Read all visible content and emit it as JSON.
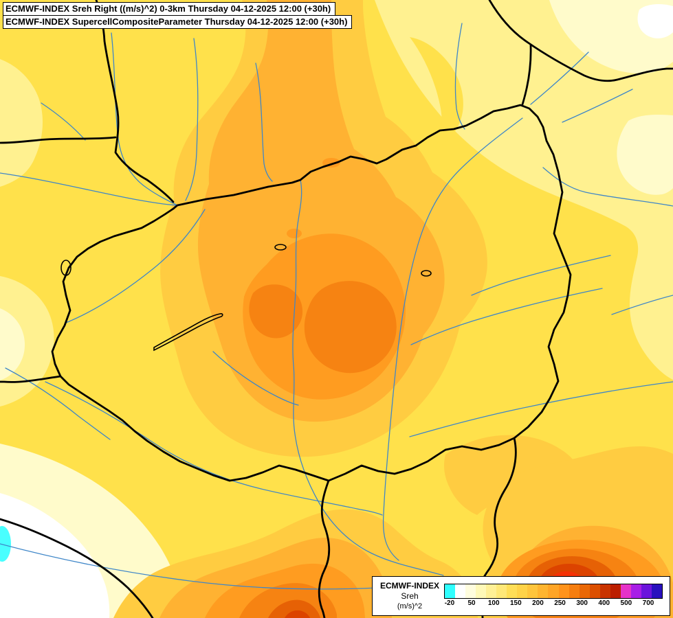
{
  "header": {
    "line1": "ECMWF-INDEX Sreh Right ((m/s)^2) 0-3km Thursday 04-12-2025 12:00 (+30h)",
    "line2": "ECMWF-INDEX SupercellCompositeParameter Thursday 04-12-2025 12:00 (+30h)"
  },
  "legend": {
    "title": "ECMWF-INDEX",
    "parameter": "Sreh",
    "units": "(m/s)^2",
    "ticks": [
      "-20",
      "50",
      "100",
      "150",
      "200",
      "250",
      "300",
      "400",
      "500",
      "700"
    ],
    "colors": [
      "#30FFFF",
      "#FFFFFF",
      "#FFFDDE",
      "#FFF9B8",
      "#FFF096",
      "#FFE878",
      "#FFDE57",
      "#FFD348",
      "#FFC53C",
      "#FFB530",
      "#FFA526",
      "#FF931B",
      "#F67E0F",
      "#EA6806",
      "#DC4F00",
      "#C93300",
      "#BC1E00",
      "#E632C8",
      "#A81EE6",
      "#6B14DC",
      "#2810BE"
    ]
  },
  "map": {
    "palette": {
      "base": "#FFE14B",
      "pale1": "#FFF190",
      "pale2": "#FFFBCB",
      "white": "#FFFFFF",
      "cyan": "#49FFFF",
      "or1": "#FFCC41",
      "or2": "#FFB232",
      "or3": "#FF9C20",
      "or4": "#F68312",
      "red1": "#E66105",
      "red2": "#DC4300",
      "red3": "#F53205",
      "river": "#3E86C8",
      "border": "#000000"
    }
  }
}
